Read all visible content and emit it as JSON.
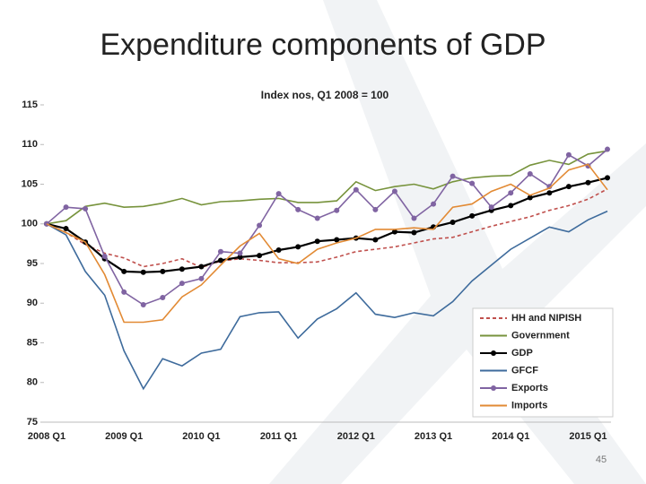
{
  "chart_data": {
    "type": "line",
    "title": "Expenditure components of GDP",
    "subtitle": "Index nos, Q1 2008 = 100",
    "page_number": "45",
    "categories": [
      "2008 Q1",
      null,
      null,
      null,
      "2009 Q1",
      null,
      null,
      null,
      "2010 Q1",
      null,
      null,
      null,
      "2011 Q1",
      null,
      null,
      null,
      "2012 Q1",
      null,
      null,
      null,
      "2013 Q1",
      null,
      null,
      null,
      "2014 Q1",
      null,
      null,
      null,
      "2015 Q1",
      null
    ],
    "ylim": [
      75,
      115
    ],
    "yticks": [
      75,
      80,
      85,
      90,
      95,
      100,
      105,
      110,
      115
    ],
    "grid": false,
    "legend": "lower right",
    "series": [
      {
        "name": "HH and NIPISH",
        "color": "#c0504d",
        "dashed": true,
        "markers": false,
        "values": [
          100,
          98.9,
          97.4,
          96.3,
          95.7,
          94.6,
          95.0,
          95.6,
          94.5,
          95.3,
          95.6,
          95.4,
          95.1,
          95.1,
          95.2,
          95.8,
          96.5,
          96.8,
          97.1,
          97.6,
          98.1,
          98.3,
          99.0,
          99.7,
          100.3,
          100.9,
          101.7,
          102.3,
          103.1,
          104.4
        ]
      },
      {
        "name": "Government",
        "color": "#77933c",
        "dashed": false,
        "markers": false,
        "values": [
          100,
          100.4,
          102.2,
          102.6,
          102.1,
          102.2,
          102.6,
          103.2,
          102.4,
          102.8,
          102.9,
          103.1,
          103.2,
          102.7,
          102.7,
          102.9,
          105.3,
          104.2,
          104.7,
          105.0,
          104.4,
          105.3,
          105.8,
          106.0,
          106.1,
          107.4,
          108.0,
          107.5,
          108.8,
          109.2
        ]
      },
      {
        "name": "GDP",
        "color": "#000000",
        "dashed": false,
        "markers": true,
        "values": [
          100,
          99.4,
          97.7,
          95.6,
          94.0,
          93.9,
          94.0,
          94.3,
          94.6,
          95.4,
          95.8,
          96.0,
          96.7,
          97.1,
          97.8,
          98.0,
          98.2,
          98.0,
          99.0,
          98.9,
          99.6,
          100.2,
          101.0,
          101.7,
          102.3,
          103.3,
          103.9,
          104.7,
          105.2,
          105.8
        ]
      },
      {
        "name": "GFCF",
        "color": "#3e6b9c",
        "dashed": false,
        "markers": false,
        "values": [
          100,
          98.6,
          94.0,
          91.0,
          84.0,
          79.2,
          83.0,
          82.1,
          83.7,
          84.2,
          88.3,
          88.8,
          88.9,
          85.6,
          88.0,
          89.3,
          91.3,
          88.6,
          88.2,
          88.8,
          88.4,
          90.2,
          92.8,
          94.8,
          96.8,
          98.2,
          99.6,
          99.0,
          100.5,
          101.6
        ]
      },
      {
        "name": "Exports",
        "color": "#8064a2",
        "dashed": false,
        "markers": true,
        "values": [
          100,
          102.1,
          101.9,
          95.9,
          91.4,
          89.8,
          90.7,
          92.5,
          93.1,
          96.5,
          96.3,
          99.8,
          103.8,
          101.8,
          100.7,
          101.7,
          104.3,
          101.8,
          104.1,
          100.7,
          102.5,
          106.0,
          105.1,
          102.1,
          103.9,
          106.3,
          104.7,
          108.7,
          107.3,
          109.4
        ]
      },
      {
        "name": "Imports",
        "color": "#e28a34",
        "dashed": false,
        "markers": false,
        "values": [
          100,
          98.9,
          97.7,
          93.6,
          87.6,
          87.6,
          87.9,
          90.8,
          92.3,
          94.8,
          97.2,
          98.8,
          95.6,
          95.0,
          96.8,
          97.6,
          98.2,
          99.3,
          99.3,
          99.5,
          99.3,
          102.1,
          102.5,
          104.1,
          105.0,
          103.6,
          104.5,
          106.8,
          107.5,
          104.3
        ]
      }
    ]
  }
}
